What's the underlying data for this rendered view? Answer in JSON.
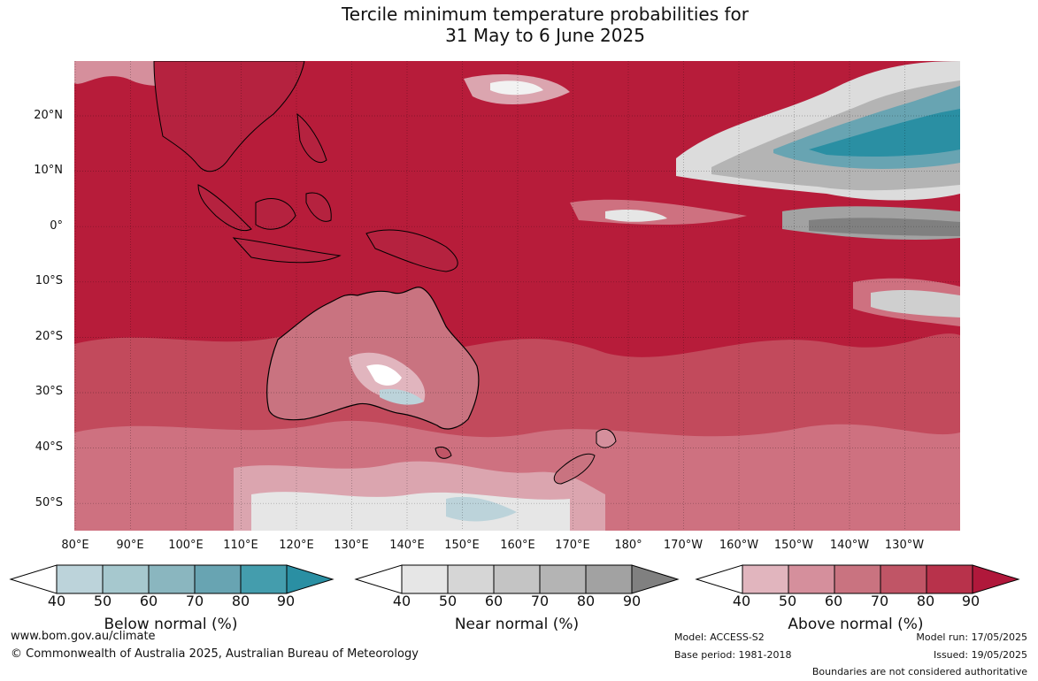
{
  "title": {
    "line1": "Tercile minimum temperature probabilities for",
    "line2": "31 May to 6 June 2025"
  },
  "map": {
    "lat_labels": [
      "20°N",
      "10°N",
      "0°",
      "10°S",
      "20°S",
      "30°S",
      "40°S",
      "50°S"
    ],
    "lon_labels": [
      "80°E",
      "90°E",
      "100°E",
      "110°E",
      "120°E",
      "130°E",
      "140°E",
      "150°E",
      "160°E",
      "170°E",
      "180°",
      "170°W",
      "160°W",
      "150°W",
      "140°W",
      "130°W"
    ],
    "dominant_category": "Above normal",
    "dominant_level_percent": 90
  },
  "colorbars": [
    {
      "title": "Below normal (%)",
      "ticks": [
        "40",
        "50",
        "60",
        "70",
        "80",
        "90"
      ],
      "colors": [
        "#ffffff",
        "#bcd3da",
        "#a6c8ce",
        "#8ab6bf",
        "#68a4b2",
        "#449dad",
        "#2a8fa3"
      ]
    },
    {
      "title": "Near normal (%)",
      "ticks": [
        "40",
        "50",
        "60",
        "70",
        "80",
        "90"
      ],
      "colors": [
        "#ffffff",
        "#e6e6e6",
        "#d6d6d6",
        "#c4c4c4",
        "#b4b4b4",
        "#a2a2a2",
        "#808080"
      ]
    },
    {
      "title": "Above normal (%)",
      "ticks": [
        "40",
        "50",
        "60",
        "70",
        "80",
        "90"
      ],
      "colors": [
        "#ffffff",
        "#e1b5be",
        "#d58f9c",
        "#c97380",
        "#c05566",
        "#b8324b",
        "#b0183b"
      ]
    }
  ],
  "footer": {
    "website": "www.bom.gov.au/climate",
    "copyright": "© Commonwealth of Australia 2025, Australian Bureau of Meteorology",
    "model": "Model: ACCESS-S2",
    "base_period": "Base period: 1981-2018",
    "model_run": "Model run: 17/05/2025",
    "issued": "Issued: 19/05/2025",
    "disclaimer": "Boundaries are not considered authoritative"
  }
}
